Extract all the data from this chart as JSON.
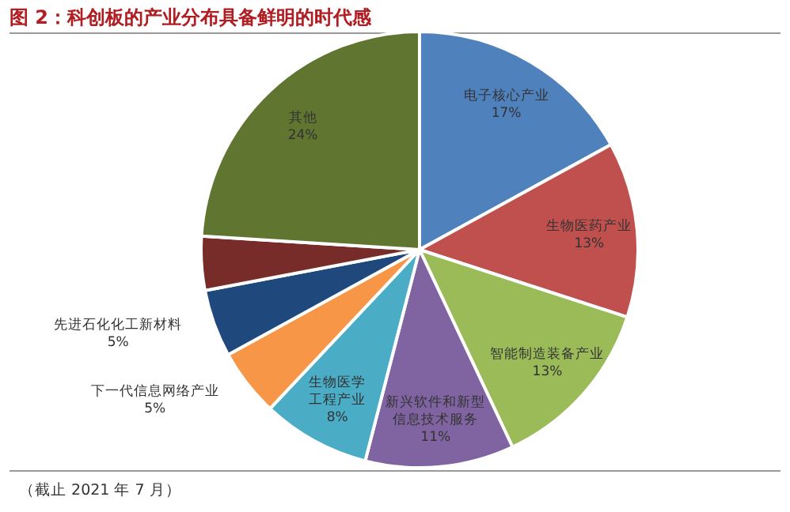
{
  "chart_data": {
    "type": "pie",
    "title": "图 2：科创板的产业分布具备鲜明的时代感",
    "categories": [
      "电子核心产业",
      "生物医药产业",
      "智能制造装备产业",
      "新兴软件和新型信息技术服务",
      "生物医学工程产业",
      "下一代信息网络产业",
      "先进石化化工新材料",
      null,
      "其他"
    ],
    "values": [
      17,
      13,
      13,
      11,
      8,
      5,
      5,
      4,
      24
    ],
    "value_labels": [
      "17%",
      "13%",
      "13%",
      "11%",
      "8%",
      "5%",
      "5%",
      null,
      "24%"
    ],
    "colors": [
      "#4f81bd",
      "#c0504d",
      "#9bbb59",
      "#8064a2",
      "#4bacc6",
      "#f79646",
      "#1f497d",
      "#772c2a",
      "#5f7530"
    ],
    "annotations": [
      "（截止 2021 年 7 月）"
    ]
  }
}
